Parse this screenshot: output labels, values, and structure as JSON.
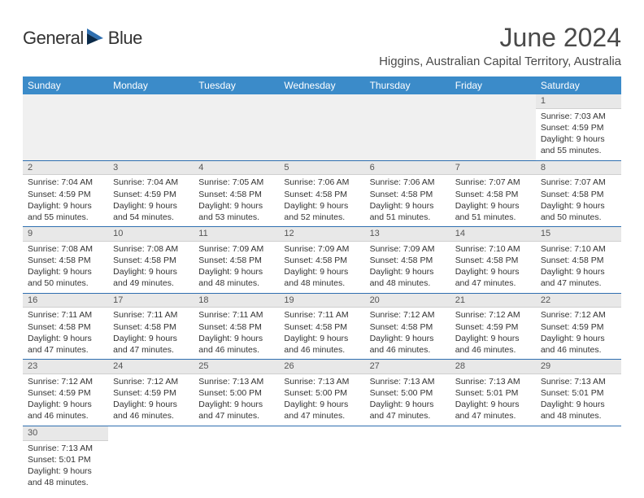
{
  "brand": {
    "name_part1": "General",
    "name_part2": "Blue"
  },
  "title": "June 2024",
  "subtitle": "Higgins, Australian Capital Territory, Australia",
  "colors": {
    "header_bg": "#3b8bc9",
    "header_fg": "#ffffff",
    "rule": "#2f6fb0",
    "daynum_bg": "#e8e8e8",
    "logo_blue": "#2f6fb0",
    "text": "#333333"
  },
  "day_headers": [
    "Sunday",
    "Monday",
    "Tuesday",
    "Wednesday",
    "Thursday",
    "Friday",
    "Saturday"
  ],
  "weeks": [
    [
      null,
      null,
      null,
      null,
      null,
      null,
      {
        "n": "1",
        "sunrise": "Sunrise: 7:03 AM",
        "sunset": "Sunset: 4:59 PM",
        "day1": "Daylight: 9 hours",
        "day2": "and 55 minutes."
      }
    ],
    [
      {
        "n": "2",
        "sunrise": "Sunrise: 7:04 AM",
        "sunset": "Sunset: 4:59 PM",
        "day1": "Daylight: 9 hours",
        "day2": "and 55 minutes."
      },
      {
        "n": "3",
        "sunrise": "Sunrise: 7:04 AM",
        "sunset": "Sunset: 4:59 PM",
        "day1": "Daylight: 9 hours",
        "day2": "and 54 minutes."
      },
      {
        "n": "4",
        "sunrise": "Sunrise: 7:05 AM",
        "sunset": "Sunset: 4:58 PM",
        "day1": "Daylight: 9 hours",
        "day2": "and 53 minutes."
      },
      {
        "n": "5",
        "sunrise": "Sunrise: 7:06 AM",
        "sunset": "Sunset: 4:58 PM",
        "day1": "Daylight: 9 hours",
        "day2": "and 52 minutes."
      },
      {
        "n": "6",
        "sunrise": "Sunrise: 7:06 AM",
        "sunset": "Sunset: 4:58 PM",
        "day1": "Daylight: 9 hours",
        "day2": "and 51 minutes."
      },
      {
        "n": "7",
        "sunrise": "Sunrise: 7:07 AM",
        "sunset": "Sunset: 4:58 PM",
        "day1": "Daylight: 9 hours",
        "day2": "and 51 minutes."
      },
      {
        "n": "8",
        "sunrise": "Sunrise: 7:07 AM",
        "sunset": "Sunset: 4:58 PM",
        "day1": "Daylight: 9 hours",
        "day2": "and 50 minutes."
      }
    ],
    [
      {
        "n": "9",
        "sunrise": "Sunrise: 7:08 AM",
        "sunset": "Sunset: 4:58 PM",
        "day1": "Daylight: 9 hours",
        "day2": "and 50 minutes."
      },
      {
        "n": "10",
        "sunrise": "Sunrise: 7:08 AM",
        "sunset": "Sunset: 4:58 PM",
        "day1": "Daylight: 9 hours",
        "day2": "and 49 minutes."
      },
      {
        "n": "11",
        "sunrise": "Sunrise: 7:09 AM",
        "sunset": "Sunset: 4:58 PM",
        "day1": "Daylight: 9 hours",
        "day2": "and 48 minutes."
      },
      {
        "n": "12",
        "sunrise": "Sunrise: 7:09 AM",
        "sunset": "Sunset: 4:58 PM",
        "day1": "Daylight: 9 hours",
        "day2": "and 48 minutes."
      },
      {
        "n": "13",
        "sunrise": "Sunrise: 7:09 AM",
        "sunset": "Sunset: 4:58 PM",
        "day1": "Daylight: 9 hours",
        "day2": "and 48 minutes."
      },
      {
        "n": "14",
        "sunrise": "Sunrise: 7:10 AM",
        "sunset": "Sunset: 4:58 PM",
        "day1": "Daylight: 9 hours",
        "day2": "and 47 minutes."
      },
      {
        "n": "15",
        "sunrise": "Sunrise: 7:10 AM",
        "sunset": "Sunset: 4:58 PM",
        "day1": "Daylight: 9 hours",
        "day2": "and 47 minutes."
      }
    ],
    [
      {
        "n": "16",
        "sunrise": "Sunrise: 7:11 AM",
        "sunset": "Sunset: 4:58 PM",
        "day1": "Daylight: 9 hours",
        "day2": "and 47 minutes."
      },
      {
        "n": "17",
        "sunrise": "Sunrise: 7:11 AM",
        "sunset": "Sunset: 4:58 PM",
        "day1": "Daylight: 9 hours",
        "day2": "and 47 minutes."
      },
      {
        "n": "18",
        "sunrise": "Sunrise: 7:11 AM",
        "sunset": "Sunset: 4:58 PM",
        "day1": "Daylight: 9 hours",
        "day2": "and 46 minutes."
      },
      {
        "n": "19",
        "sunrise": "Sunrise: 7:11 AM",
        "sunset": "Sunset: 4:58 PM",
        "day1": "Daylight: 9 hours",
        "day2": "and 46 minutes."
      },
      {
        "n": "20",
        "sunrise": "Sunrise: 7:12 AM",
        "sunset": "Sunset: 4:58 PM",
        "day1": "Daylight: 9 hours",
        "day2": "and 46 minutes."
      },
      {
        "n": "21",
        "sunrise": "Sunrise: 7:12 AM",
        "sunset": "Sunset: 4:59 PM",
        "day1": "Daylight: 9 hours",
        "day2": "and 46 minutes."
      },
      {
        "n": "22",
        "sunrise": "Sunrise: 7:12 AM",
        "sunset": "Sunset: 4:59 PM",
        "day1": "Daylight: 9 hours",
        "day2": "and 46 minutes."
      }
    ],
    [
      {
        "n": "23",
        "sunrise": "Sunrise: 7:12 AM",
        "sunset": "Sunset: 4:59 PM",
        "day1": "Daylight: 9 hours",
        "day2": "and 46 minutes."
      },
      {
        "n": "24",
        "sunrise": "Sunrise: 7:12 AM",
        "sunset": "Sunset: 4:59 PM",
        "day1": "Daylight: 9 hours",
        "day2": "and 46 minutes."
      },
      {
        "n": "25",
        "sunrise": "Sunrise: 7:13 AM",
        "sunset": "Sunset: 5:00 PM",
        "day1": "Daylight: 9 hours",
        "day2": "and 47 minutes."
      },
      {
        "n": "26",
        "sunrise": "Sunrise: 7:13 AM",
        "sunset": "Sunset: 5:00 PM",
        "day1": "Daylight: 9 hours",
        "day2": "and 47 minutes."
      },
      {
        "n": "27",
        "sunrise": "Sunrise: 7:13 AM",
        "sunset": "Sunset: 5:00 PM",
        "day1": "Daylight: 9 hours",
        "day2": "and 47 minutes."
      },
      {
        "n": "28",
        "sunrise": "Sunrise: 7:13 AM",
        "sunset": "Sunset: 5:01 PM",
        "day1": "Daylight: 9 hours",
        "day2": "and 47 minutes."
      },
      {
        "n": "29",
        "sunrise": "Sunrise: 7:13 AM",
        "sunset": "Sunset: 5:01 PM",
        "day1": "Daylight: 9 hours",
        "day2": "and 48 minutes."
      }
    ],
    [
      {
        "n": "30",
        "sunrise": "Sunrise: 7:13 AM",
        "sunset": "Sunset: 5:01 PM",
        "day1": "Daylight: 9 hours",
        "day2": "and 48 minutes."
      },
      null,
      null,
      null,
      null,
      null,
      null
    ]
  ]
}
